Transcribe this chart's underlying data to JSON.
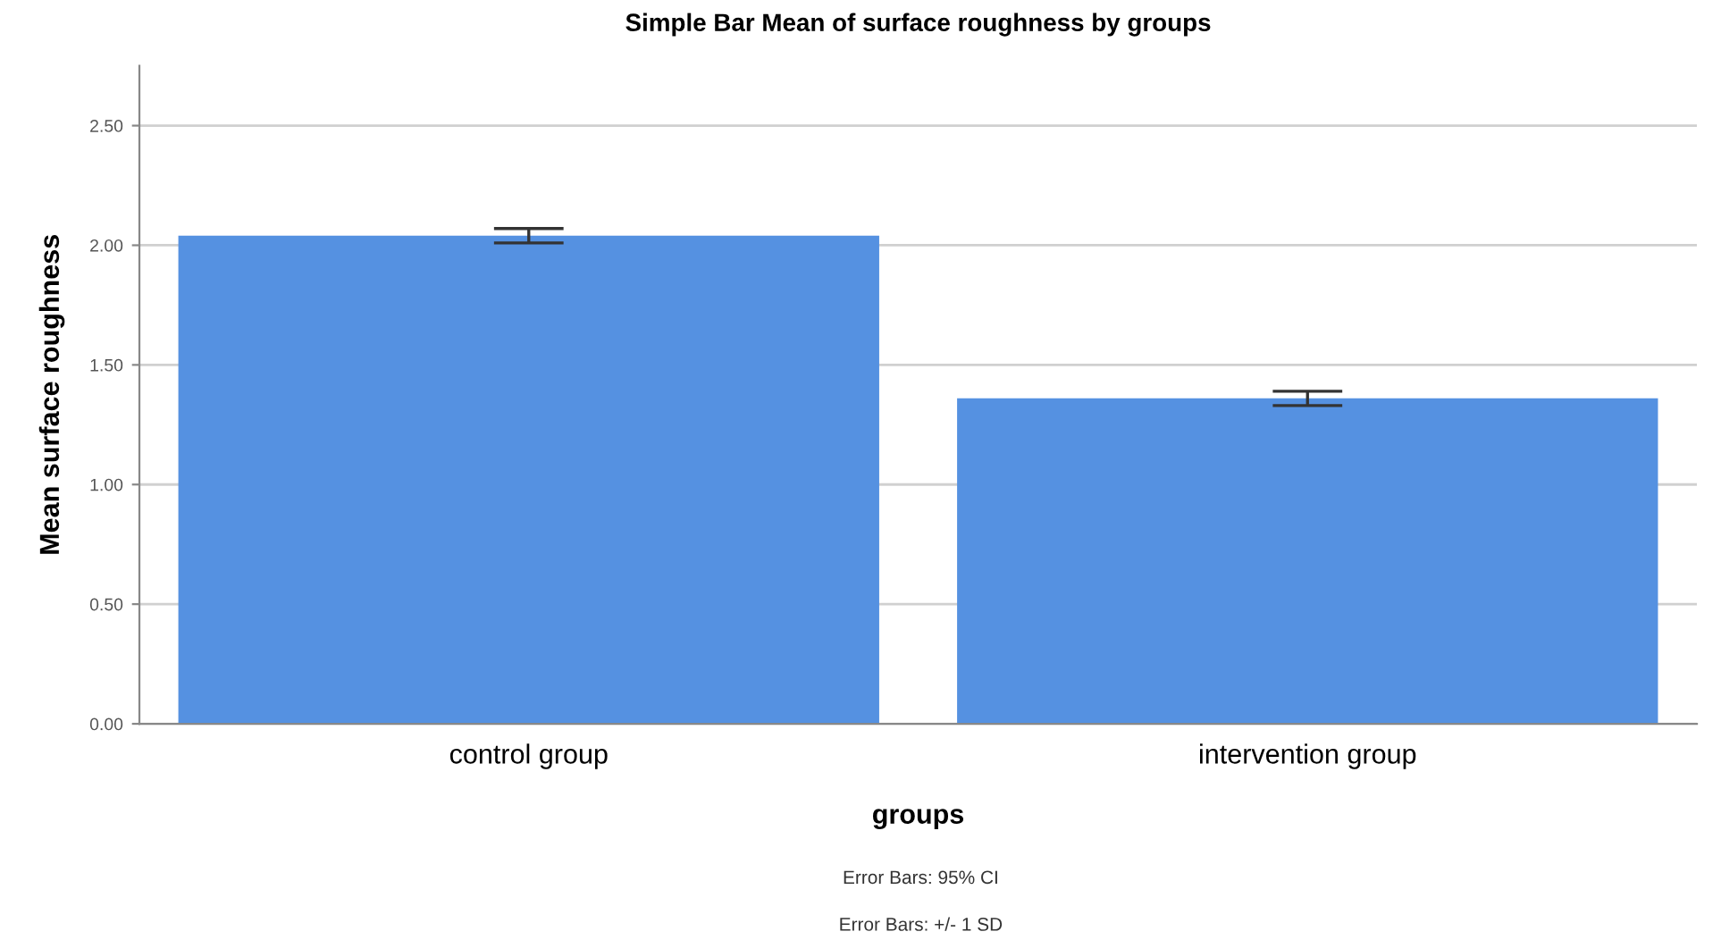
{
  "chart_data": {
    "type": "bar",
    "title": "Simple Bar Mean of surface roughness by groups",
    "xlabel": "groups",
    "ylabel": "Mean surface roughness",
    "categories": [
      "control group",
      "intervention group"
    ],
    "values": [
      2.04,
      1.36
    ],
    "errors": [
      0.03,
      0.03
    ],
    "color": "#5591e1",
    "ylim": [
      0,
      2.75
    ],
    "yticks": [
      {
        "value": 0,
        "label": "0.00"
      },
      {
        "value": 0.5,
        "label": "0.50"
      },
      {
        "value": 1,
        "label": "1.00"
      },
      {
        "value": 1.5,
        "label": "1.50"
      },
      {
        "value": 2,
        "label": "2.00"
      },
      {
        "value": 2.5,
        "label": "2.50"
      }
    ],
    "grid": "y",
    "annotations": [
      "Error Bars: 95% CI",
      "Error Bars: +/- 1 SD"
    ]
  }
}
